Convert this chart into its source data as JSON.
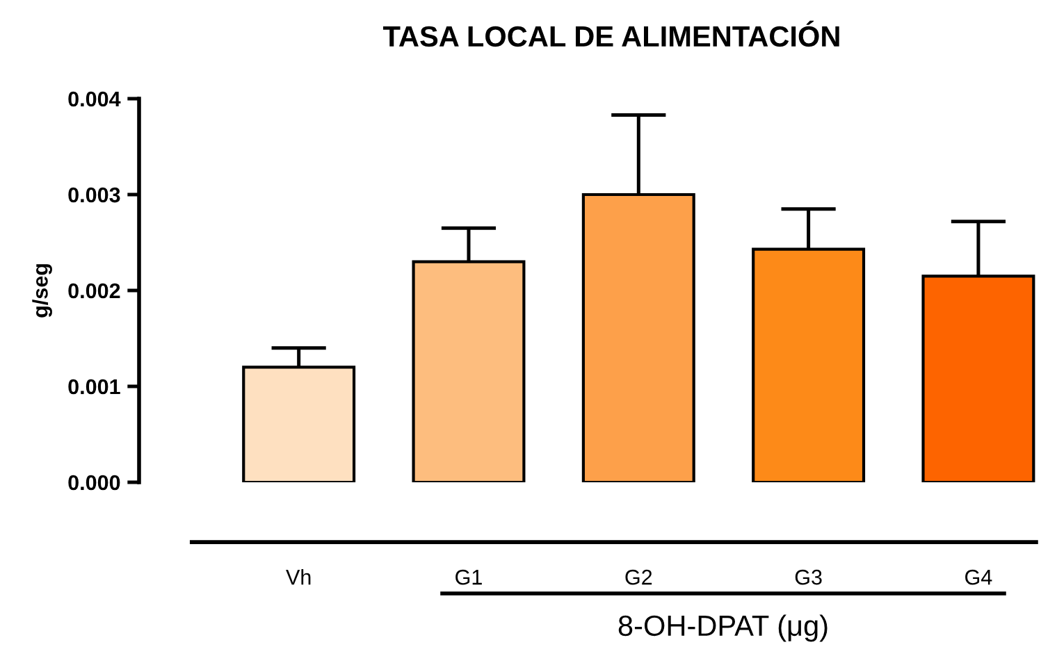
{
  "chart_data": {
    "type": "bar",
    "title": "TASA LOCAL DE ALIMENTACIÓN",
    "ylabel": "g/seg",
    "categories": [
      "Vh",
      "G1",
      "G2",
      "G3",
      "G4"
    ],
    "values": [
      0.0012,
      0.0023,
      0.003,
      0.00243,
      0.00215
    ],
    "colors": [
      "#fee0c0",
      "#fdbd7e",
      "#fda04a",
      "#fd8a18",
      "#fd6400"
    ],
    "errors": [
      [
        0.0012,
        0.0014
      ],
      [
        0.0023,
        0.00265
      ],
      [
        0.003,
        0.00383
      ],
      [
        0.00243,
        0.00285
      ],
      [
        0.00215,
        0.00272
      ]
    ],
    "ylim": [
      0,
      0.004
    ],
    "yticks": [
      {
        "value": 0,
        "label": "0.000"
      },
      {
        "value": 0.001,
        "label": "0.001"
      },
      {
        "value": 0.002,
        "label": "0.002"
      },
      {
        "value": 0.003,
        "label": "0.003"
      },
      {
        "value": 0.004,
        "label": "0.004"
      }
    ],
    "annotations": [
      "8-OH-DPAT (μg)"
    ],
    "grid": false,
    "legend": false
  }
}
